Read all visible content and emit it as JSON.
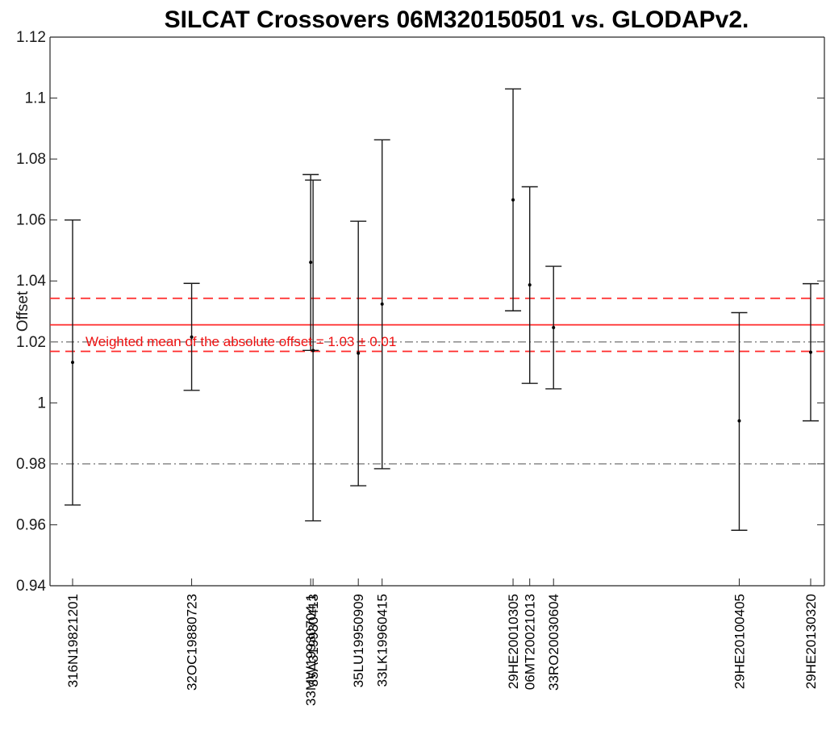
{
  "chart_data": {
    "type": "scatter",
    "title": "SILCAT Crossovers 06M320150501 vs. GLODAPv2.",
    "xlabel": "",
    "ylabel": "Offset",
    "ylim": [
      0.94,
      1.12
    ],
    "yticks": [
      "0.94",
      "0.96",
      "0.98",
      "1",
      "1.02",
      "1.04",
      "1.06",
      "1.08",
      "1.1",
      "1.12"
    ],
    "grid": false,
    "points": [
      {
        "label": "316N19821201",
        "x": 1,
        "y": 1.0133,
        "low": 0.9665,
        "high": 1.06
      },
      {
        "label": "32OC19880723",
        "x": 6,
        "y": 1.0216,
        "low": 1.0041,
        "high": 1.0392
      },
      {
        "label": "33MW19930704.1",
        "x": 11,
        "y": 1.0461,
        "low": 1.0172,
        "high": 1.0749
      },
      {
        "label": "35A319930413",
        "x": 11.1,
        "y": 1.0172,
        "low": 0.9613,
        "high": 1.0731
      },
      {
        "label": "35LU19950909",
        "x": 13,
        "y": 1.0163,
        "low": 0.9728,
        "high": 1.0596
      },
      {
        "label": "33LK19960415",
        "x": 14,
        "y": 1.0324,
        "low": 0.9784,
        "high": 1.0863
      },
      {
        "label": "29HE20010305",
        "x": 19.5,
        "y": 1.0666,
        "low": 1.0302,
        "high": 1.103
      },
      {
        "label": "06MT20021013",
        "x": 20.2,
        "y": 1.0387,
        "low": 1.0064,
        "high": 1.0709
      },
      {
        "label": "33RO20030604",
        "x": 21.2,
        "y": 1.0247,
        "low": 1.0046,
        "high": 1.0448
      },
      {
        "label": "29HE20100405",
        "x": 29,
        "y": 0.9941,
        "low": 0.9582,
        "high": 1.0296
      },
      {
        "label": "29HE20130320",
        "x": 32,
        "y": 1.0166,
        "low": 0.9941,
        "high": 1.0391
      }
    ],
    "reference_lines": [
      {
        "name": "weighted-mean",
        "y": 1.0256,
        "style": "solid",
        "color": "#ff2a2a"
      },
      {
        "name": "mean-upper",
        "y": 1.0343,
        "style": "dashed",
        "color": "#ff2a2a"
      },
      {
        "name": "mean-lower",
        "y": 1.0169,
        "style": "dashed",
        "color": "#ff2a2a"
      },
      {
        "name": "threshold-upper",
        "y": 1.02,
        "style": "dashdot",
        "color": "#7f7f7f"
      },
      {
        "name": "threshold-lower",
        "y": 0.98,
        "style": "dashdot",
        "color": "#7f7f7f"
      }
    ],
    "annotation": "Weighted mean of the absolute offset = 1.03 ± 0.01",
    "colors": {
      "points": "#000000",
      "errorbars": "#1a1a1a",
      "mean": "#ff2a2a",
      "threshold": "#7f7f7f"
    }
  }
}
